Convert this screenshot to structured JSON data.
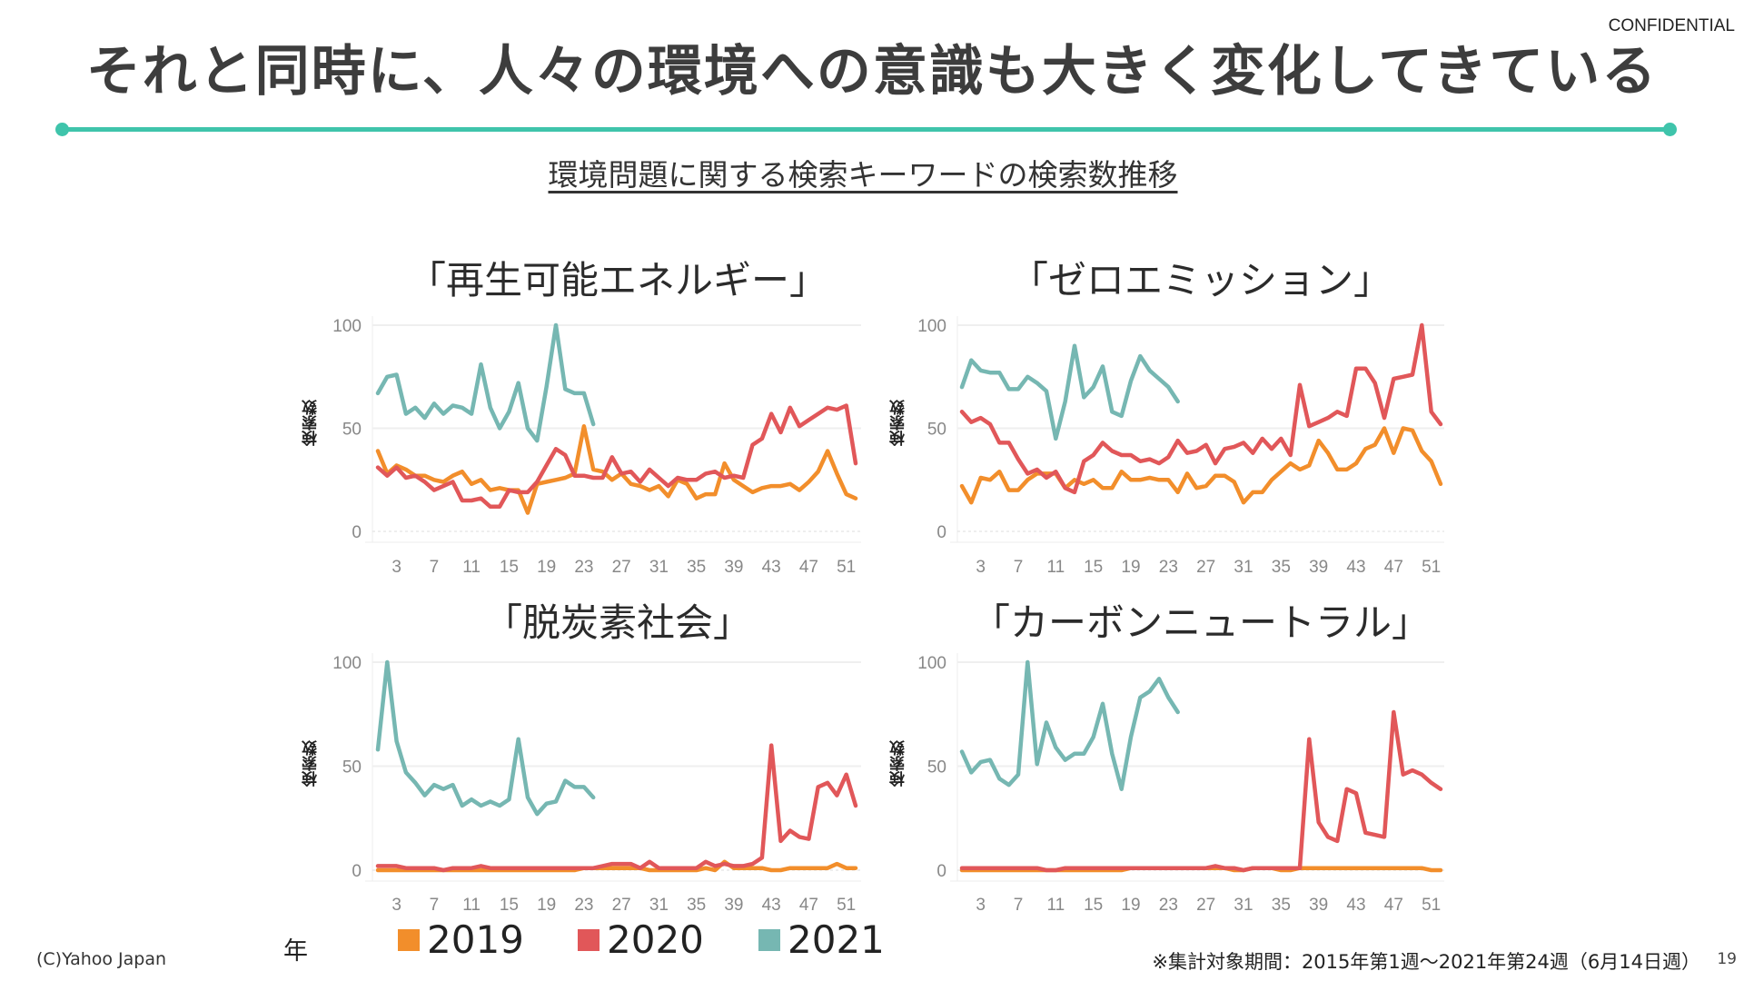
{
  "header": {
    "confidential": "CONFIDENTIAL",
    "title": "それと同時に、人々の環境への意識も大きく変化してきている",
    "subtitle": "環境問題に関する検索キーワードの検索数推移"
  },
  "legend": {
    "label": "年",
    "items": [
      {
        "name": "2019",
        "color": "#F28E2B"
      },
      {
        "name": "2020",
        "color": "#E15759"
      },
      {
        "name": "2021",
        "color": "#76B7B2"
      }
    ]
  },
  "footer": {
    "copyright": "(C)Yahoo Japan",
    "note": "※集計対象期間：2015年第1週〜2021年第24週（6月14日週）",
    "page": "19"
  },
  "chart_data": [
    {
      "type": "line",
      "title": "「再生可能エネルギー」",
      "ylabel": "検索数",
      "ylim": [
        0,
        100
      ],
      "yticks": [
        0,
        50,
        100
      ],
      "xticks": [
        3,
        7,
        11,
        15,
        19,
        23,
        27,
        31,
        35,
        39,
        43,
        47,
        51
      ],
      "grid": true,
      "series": [
        {
          "name": "2019",
          "values": [
            39,
            28,
            32,
            30,
            27,
            27,
            25,
            24,
            27,
            29,
            23,
            25,
            20,
            21,
            20,
            20,
            9,
            23,
            24,
            25,
            26,
            28,
            51,
            30,
            29,
            25,
            28,
            23,
            22,
            20,
            22,
            17,
            25,
            23,
            16,
            18,
            18,
            33,
            25,
            22,
            19,
            21,
            22,
            22,
            23,
            20,
            24,
            29,
            39,
            28,
            18,
            16
          ]
        },
        {
          "name": "2020",
          "values": [
            31,
            27,
            31,
            26,
            27,
            24,
            20,
            22,
            24,
            15,
            15,
            16,
            12,
            12,
            20,
            19,
            19,
            24,
            32,
            40,
            37,
            27,
            27,
            26,
            26,
            36,
            28,
            29,
            24,
            30,
            26,
            22,
            26,
            25,
            25,
            28,
            29,
            26,
            27,
            26,
            42,
            45,
            57,
            48,
            60,
            51,
            54,
            57,
            60,
            59,
            61,
            33
          ]
        },
        {
          "name": "2021",
          "values": [
            67,
            75,
            76,
            57,
            60,
            55,
            62,
            57,
            61,
            60,
            57,
            81,
            60,
            50,
            58,
            72,
            50,
            44,
            70,
            100,
            69,
            67,
            67,
            52
          ]
        }
      ]
    },
    {
      "type": "line",
      "title": "「ゼロエミッション」",
      "ylabel": "検索数",
      "ylim": [
        0,
        100
      ],
      "yticks": [
        0,
        50,
        100
      ],
      "xticks": [
        3,
        7,
        11,
        15,
        19,
        23,
        27,
        31,
        35,
        39,
        43,
        47,
        51
      ],
      "grid": true,
      "series": [
        {
          "name": "2019",
          "values": [
            22,
            14,
            26,
            25,
            29,
            20,
            20,
            25,
            28,
            28,
            28,
            21,
            25,
            23,
            25,
            21,
            21,
            29,
            25,
            25,
            26,
            25,
            25,
            19,
            28,
            21,
            22,
            27,
            27,
            24,
            14,
            19,
            19,
            25,
            29,
            33,
            30,
            32,
            44,
            38,
            30,
            30,
            33,
            40,
            42,
            50,
            38,
            50,
            49,
            39,
            34,
            23
          ]
        },
        {
          "name": "2020",
          "values": [
            58,
            53,
            55,
            52,
            43,
            43,
            35,
            28,
            30,
            26,
            29,
            21,
            19,
            34,
            37,
            43,
            39,
            37,
            37,
            34,
            35,
            33,
            36,
            44,
            38,
            39,
            42,
            33,
            40,
            41,
            43,
            38,
            45,
            40,
            45,
            37,
            71,
            51,
            53,
            55,
            58,
            56,
            79,
            79,
            72,
            55,
            74,
            75,
            76,
            100,
            58,
            52
          ]
        },
        {
          "name": "2021",
          "values": [
            70,
            83,
            78,
            77,
            77,
            69,
            69,
            75,
            72,
            68,
            45,
            63,
            90,
            65,
            70,
            80,
            58,
            56,
            73,
            85,
            78,
            74,
            70,
            63
          ]
        }
      ]
    },
    {
      "type": "line",
      "title": "「脱炭素社会」",
      "ylabel": "検索数",
      "ylim": [
        0,
        100
      ],
      "yticks": [
        0,
        50,
        100
      ],
      "xticks": [
        3,
        7,
        11,
        15,
        19,
        23,
        27,
        31,
        35,
        39,
        43,
        47,
        51
      ],
      "grid": true,
      "series": [
        {
          "name": "2019",
          "values": [
            0,
            0,
            0,
            0,
            0,
            0,
            0,
            0,
            0,
            0,
            0,
            0,
            0,
            0,
            0,
            0,
            0,
            0,
            0,
            0,
            0,
            0,
            1,
            1,
            1,
            1,
            1,
            1,
            1,
            0,
            0,
            0,
            0,
            0,
            0,
            1,
            0,
            4,
            1,
            1,
            1,
            1,
            0,
            0,
            1,
            1,
            1,
            1,
            1,
            3,
            1,
            1
          ]
        },
        {
          "name": "2020",
          "values": [
            2,
            2,
            2,
            1,
            1,
            1,
            1,
            0,
            1,
            1,
            1,
            2,
            1,
            1,
            1,
            1,
            1,
            1,
            1,
            1,
            1,
            1,
            1,
            1,
            2,
            3,
            3,
            3,
            1,
            4,
            1,
            1,
            1,
            1,
            1,
            4,
            2,
            3,
            2,
            2,
            3,
            6,
            60,
            14,
            19,
            16,
            15,
            40,
            42,
            36,
            46,
            31
          ]
        },
        {
          "name": "2021",
          "values": [
            58,
            100,
            62,
            47,
            42,
            36,
            41,
            39,
            41,
            31,
            34,
            31,
            33,
            31,
            34,
            63,
            35,
            27,
            32,
            33,
            43,
            40,
            40,
            35
          ]
        }
      ]
    },
    {
      "type": "line",
      "title": "「カーボンニュートラル」",
      "ylabel": "検索数",
      "ylim": [
        0,
        100
      ],
      "yticks": [
        0,
        50,
        100
      ],
      "xticks": [
        3,
        7,
        11,
        15,
        19,
        23,
        27,
        31,
        35,
        39,
        43,
        47,
        51
      ],
      "grid": true,
      "series": [
        {
          "name": "2019",
          "values": [
            0,
            0,
            0,
            0,
            0,
            0,
            0,
            0,
            0,
            0,
            0,
            0,
            0,
            0,
            0,
            0,
            0,
            0,
            1,
            1,
            1,
            1,
            1,
            1,
            1,
            1,
            1,
            1,
            1,
            0,
            0,
            1,
            1,
            1,
            0,
            0,
            1,
            1,
            1,
            1,
            1,
            1,
            1,
            1,
            1,
            1,
            1,
            1,
            1,
            1,
            0,
            0
          ]
        },
        {
          "name": "2020",
          "values": [
            1,
            1,
            1,
            1,
            1,
            1,
            1,
            1,
            1,
            0,
            0,
            1,
            1,
            1,
            1,
            1,
            1,
            1,
            1,
            1,
            1,
            1,
            1,
            1,
            1,
            1,
            1,
            2,
            1,
            1,
            0,
            1,
            1,
            1,
            1,
            1,
            1,
            63,
            23,
            16,
            14,
            39,
            37,
            18,
            17,
            16,
            76,
            46,
            48,
            46,
            42,
            39
          ]
        },
        {
          "name": "2021",
          "values": [
            57,
            47,
            52,
            53,
            44,
            41,
            46,
            100,
            51,
            71,
            59,
            53,
            56,
            56,
            64,
            80,
            56,
            39,
            64,
            83,
            86,
            92,
            83,
            76
          ]
        }
      ]
    }
  ]
}
